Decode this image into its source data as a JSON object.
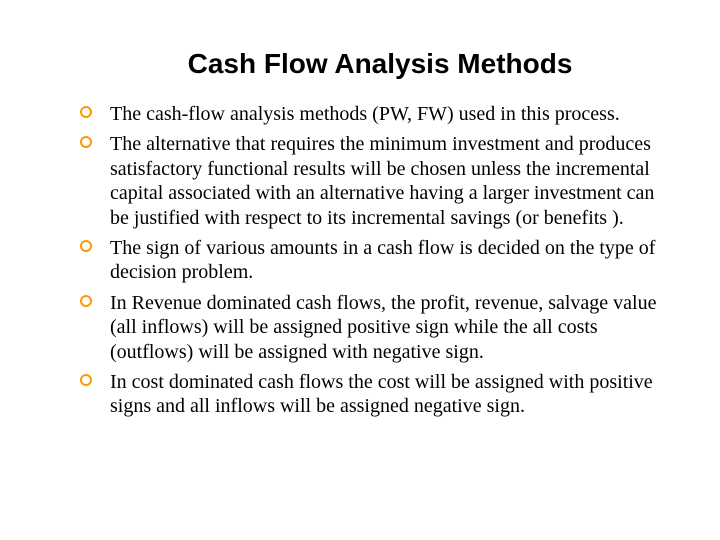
{
  "title": "Cash Flow Analysis Methods",
  "title_fontsize": 28,
  "title_font": "Arial",
  "bullet_color": "#ff9900",
  "body_font": "Times New Roman",
  "body_fontsize": 20,
  "background_color": "#ffffff",
  "text_color": "#000000",
  "bullets": [
    "The cash-flow analysis methods (PW, FW) used in this process.",
    "The alternative that requires the minimum investment and produces satisfactory functional results will be chosen unless the incremental capital associated with an alternative having a larger investment can be justified with respect to its incremental savings (or benefits ).",
    "The sign of various amounts in a cash flow is decided on the type of decision problem.",
    "In Revenue dominated cash flows, the profit, revenue, salvage value (all inflows) will be assigned positive sign while the all costs (outflows) will be assigned with negative sign.",
    "In cost dominated cash flows the cost will be assigned with positive signs and all inflows will be assigned negative sign."
  ]
}
